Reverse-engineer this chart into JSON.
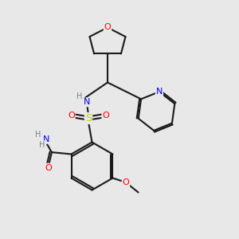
{
  "background_color": "#e8e8e8",
  "bond_color": "#1a1a1a",
  "atom_colors": {
    "O": "#ff0000",
    "N": "#0000ff",
    "S": "#cccc00",
    "H": "#708090",
    "C": "#1a1a1a"
  },
  "figsize": [
    3.0,
    3.0
  ],
  "dpi": 100
}
